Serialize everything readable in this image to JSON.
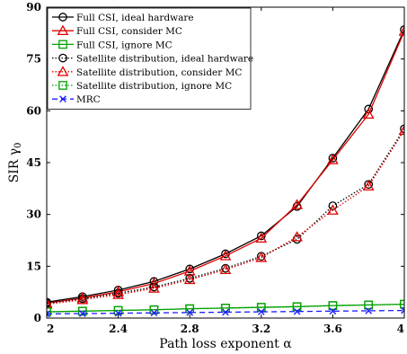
{
  "chart_data": {
    "type": "line",
    "title": "",
    "xlabel": "Path loss exponent α",
    "ylabel": "SIR γ0",
    "ylabel_main": "SIR γ",
    "ylabel_sub": "0",
    "xlim": [
      2,
      4
    ],
    "ylim": [
      0,
      90
    ],
    "x_ticks": [
      "2",
      "2.4",
      "2.8",
      "3.2",
      "3.6",
      "4"
    ],
    "y_ticks": [
      "0",
      "15",
      "30",
      "45",
      "60",
      "75",
      "90"
    ],
    "grid": false,
    "legend_position": "top-left",
    "x": [
      2.0,
      2.2,
      2.4,
      2.6,
      2.8,
      3.0,
      3.2,
      3.4,
      3.6,
      3.8,
      4.0
    ],
    "series": [
      {
        "name": "Full CSI, ideal hardware",
        "color": "#000000",
        "marker": "circle",
        "dash": "solid",
        "values": [
          4.6,
          6.2,
          8.1,
          10.6,
          14.2,
          18.6,
          23.8,
          32.3,
          46.3,
          60.5,
          83.5
        ]
      },
      {
        "name": "Full CSI, consider MC",
        "color": "#e00000",
        "marker": "triangle",
        "dash": "solid",
        "values": [
          4.3,
          5.8,
          7.6,
          10.0,
          13.6,
          18.0,
          23.1,
          32.8,
          45.8,
          59.0,
          83.0
        ]
      },
      {
        "name": "Full CSI, ignore MC",
        "color": "#00a000",
        "marker": "square",
        "dash": "solid",
        "values": [
          1.8,
          2.0,
          2.2,
          2.4,
          2.7,
          2.9,
          3.1,
          3.3,
          3.6,
          3.8,
          4.0
        ]
      },
      {
        "name": "Satellite distribution, ideal hardware",
        "color": "#000000",
        "marker": "circle",
        "dash": "dotted",
        "values": [
          4.3,
          5.6,
          7.2,
          9.0,
          11.5,
          14.4,
          17.9,
          22.8,
          32.5,
          38.7,
          54.8
        ]
      },
      {
        "name": "Satellite distribution, consider MC",
        "color": "#e00000",
        "marker": "triangle",
        "dash": "dotted",
        "values": [
          4.0,
          5.3,
          6.8,
          8.6,
          11.1,
          14.0,
          17.5,
          23.5,
          31.2,
          38.2,
          54.3
        ]
      },
      {
        "name": "Satellite distribution, ignore MC",
        "color": "#00a000",
        "marker": "square",
        "dash": "dotted",
        "values": [
          1.8,
          2.0,
          2.2,
          2.4,
          2.7,
          2.9,
          3.1,
          3.3,
          3.6,
          3.8,
          4.0
        ]
      },
      {
        "name": "MRC",
        "color": "#1a1aff",
        "marker": "x",
        "dash": "dashed",
        "values": [
          1.2,
          1.3,
          1.4,
          1.5,
          1.6,
          1.7,
          1.8,
          1.9,
          2.0,
          2.1,
          2.2
        ]
      }
    ]
  }
}
